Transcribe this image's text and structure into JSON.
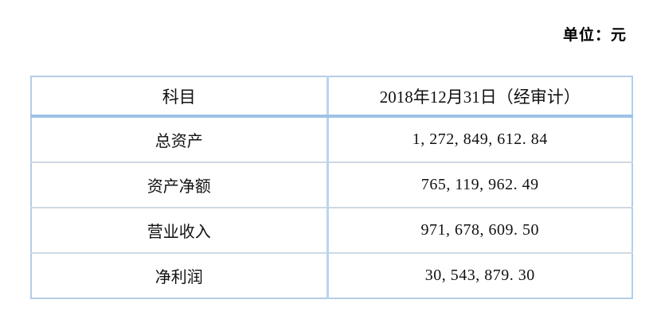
{
  "page": {
    "unit_label": "单位：元"
  },
  "table": {
    "columns": [
      {
        "label": "科目"
      },
      {
        "label": "2018年12月31日（经审计）"
      }
    ],
    "rows": [
      {
        "subject": "总资产",
        "value": "1, 272, 849, 612. 84"
      },
      {
        "subject": "资产净额",
        "value": "765, 119, 962. 49"
      },
      {
        "subject": "营业收入",
        "value": "971, 678, 609. 50"
      },
      {
        "subject": "净利润",
        "value": "30, 543, 879. 30"
      }
    ],
    "colors": {
      "outer_border": "#b5cde6",
      "header_underline": "#9dc3e6",
      "row_divider": "#cdd9e3",
      "column_divider": "#bad5ee",
      "text": "#111111",
      "background": "#ffffff"
    }
  }
}
